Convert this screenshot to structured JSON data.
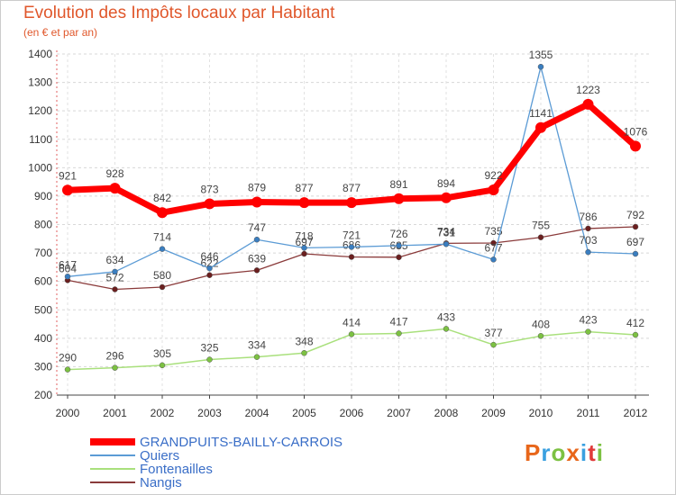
{
  "header": {
    "title": "Evolution des Impôts locaux par Habitant",
    "subtitle": "(en € et par an)"
  },
  "logo": {
    "text": "Proxiti",
    "colors": [
      "#e8661a",
      "#3aa0e0",
      "#7cc142",
      "#e8661a",
      "#3aa0e0",
      "#e03a3a",
      "#7cc142"
    ]
  },
  "chart_data": {
    "type": "line",
    "title": "Evolution des Impôts locaux par Habitant",
    "subtitle": "(en € et par an)",
    "xlabel": "",
    "ylabel": "",
    "ylim": [
      200,
      1400
    ],
    "yticks": [
      200,
      300,
      400,
      500,
      600,
      700,
      800,
      900,
      1000,
      1100,
      1200,
      1300,
      1400
    ],
    "categories": [
      "2000",
      "2001",
      "2002",
      "2003",
      "2004",
      "2005",
      "2006",
      "2007",
      "2008",
      "2009",
      "2010",
      "2011",
      "2012"
    ],
    "legend_position": "bottom-left",
    "series": [
      {
        "name": "GRANDPUITS-BAILLY-CARROIS",
        "color": "#ff0000",
        "marker": "#ff0000",
        "values": [
          921,
          928,
          842,
          873,
          879,
          877,
          877,
          891,
          894,
          922,
          1141,
          1223,
          1076
        ]
      },
      {
        "name": "Quiers",
        "color": "#5b9bd5",
        "marker": "#3a7ec0",
        "values": [
          617,
          634,
          714,
          646,
          747,
          718,
          721,
          726,
          731,
          677,
          1355,
          703,
          697
        ]
      },
      {
        "name": "Fontenailles",
        "color": "#a9e07c",
        "marker": "#7cc142",
        "values": [
          290,
          296,
          305,
          325,
          334,
          348,
          414,
          417,
          433,
          377,
          408,
          423,
          412
        ]
      },
      {
        "name": "Nangis",
        "color": "#8a3a3a",
        "marker": "#6b1f1f",
        "values": [
          604,
          572,
          580,
          622,
          639,
          697,
          686,
          685,
          734,
          735,
          755,
          786,
          792
        ]
      }
    ]
  }
}
